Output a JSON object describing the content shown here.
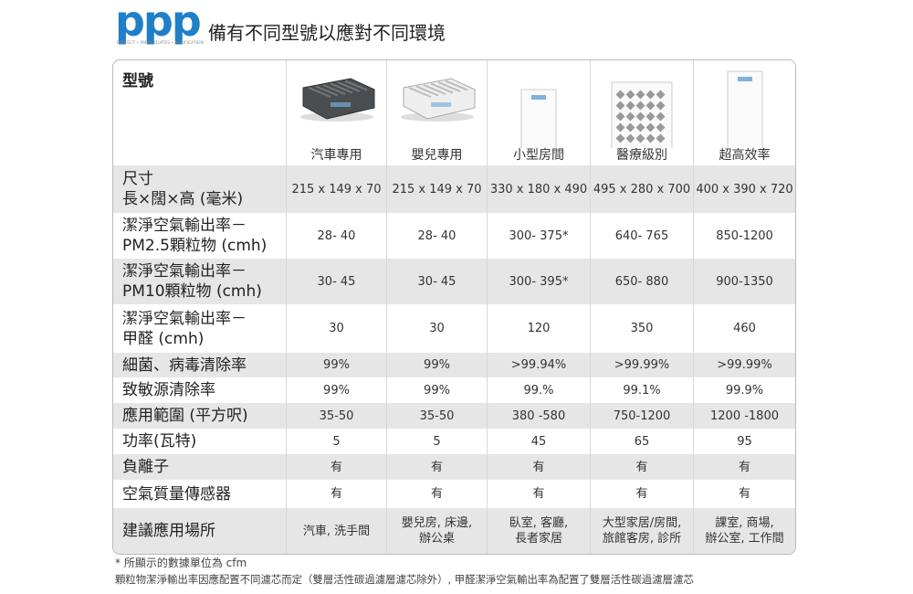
{
  "header": {
    "logo": "ppp",
    "logo_tagline": "PERFECT • PARTICULATES • PURIFICATION",
    "title": "備有不同型號以應對不同環境"
  },
  "table": {
    "header_label": "型號",
    "models": [
      "汽車專用",
      "嬰兒專用",
      "小型房間",
      "醫療級別",
      "超高效率"
    ],
    "rows": [
      {
        "label": [
          "尺寸",
          "長×闊×高 (毫米)"
        ],
        "cells": [
          [
            "215 x 149 x 70"
          ],
          [
            "215 x 149 x 70"
          ],
          [
            "330 x 180 x 490"
          ],
          [
            "495 x 280 x 700"
          ],
          [
            "400 x 390 x 720"
          ]
        ]
      },
      {
        "label": [
          "潔淨空氣輸出率－",
          "PM2.5顆粒物 (cmh)"
        ],
        "cells": [
          [
            "28- 40"
          ],
          [
            "28- 40"
          ],
          [
            "300- 375*"
          ],
          [
            "640- 765"
          ],
          [
            "850-1200"
          ]
        ]
      },
      {
        "label": [
          "潔淨空氣輸出率－",
          "PM10顆粒物 (cmh)"
        ],
        "cells": [
          [
            "30- 45"
          ],
          [
            "30- 45"
          ],
          [
            "300- 395*"
          ],
          [
            "650- 880"
          ],
          [
            "900-1350"
          ]
        ]
      },
      {
        "label": [
          "潔淨空氣輸出率－",
          "甲醛 (cmh)"
        ],
        "cells": [
          [
            "30"
          ],
          [
            "30"
          ],
          [
            "120"
          ],
          [
            "350"
          ],
          [
            "460"
          ]
        ]
      },
      {
        "label": [
          "細菌、病毒清除率"
        ],
        "cells": [
          [
            "99%"
          ],
          [
            "99%"
          ],
          [
            ">99.94%"
          ],
          [
            ">99.99%"
          ],
          [
            ">99.99%"
          ]
        ]
      },
      {
        "label": [
          "致敏源清除率"
        ],
        "cells": [
          [
            "99%"
          ],
          [
            "99%"
          ],
          [
            "99.%"
          ],
          [
            "99.1%"
          ],
          [
            "99.9%"
          ]
        ]
      },
      {
        "label": [
          "應用範圍 (平方呎)"
        ],
        "cells": [
          [
            "35-50"
          ],
          [
            "35-50"
          ],
          [
            "380 -580"
          ],
          [
            "750-1200"
          ],
          [
            "1200 -1800"
          ]
        ]
      },
      {
        "label": [
          "功率(瓦特)"
        ],
        "cells": [
          [
            "5"
          ],
          [
            "5"
          ],
          [
            "45"
          ],
          [
            "65"
          ],
          [
            "95"
          ]
        ]
      },
      {
        "label": [
          "負離子"
        ],
        "cells": [
          [
            "有"
          ],
          [
            "有"
          ],
          [
            "有"
          ],
          [
            "有"
          ],
          [
            "有"
          ]
        ]
      },
      {
        "label": [
          "空氣質量傳感器"
        ],
        "cells": [
          [
            "有"
          ],
          [
            "有"
          ],
          [
            "有"
          ],
          [
            "有"
          ],
          [
            "有"
          ]
        ]
      },
      {
        "label": [
          "建議應用場所"
        ],
        "cells": [
          [
            "汽車, 洗手間"
          ],
          [
            "嬰兒房, 床邊,",
            "辦公桌"
          ],
          [
            "臥室, 客廳,",
            "長者家居"
          ],
          [
            "大型家居/房間,",
            "旅館客房, 診所"
          ],
          [
            "課室, 商場,",
            "辦公室, 工作間"
          ]
        ]
      }
    ]
  },
  "notes": [
    "* 所顯示的數據單位為 cfm",
    "顆粒物潔淨輸出率因應配置不同濾芯而定（雙層活性碳過濾層濾芯除外）, 甲醛潔淨空氣輸出率為配置了雙層活性碳過濾層濾芯"
  ]
}
